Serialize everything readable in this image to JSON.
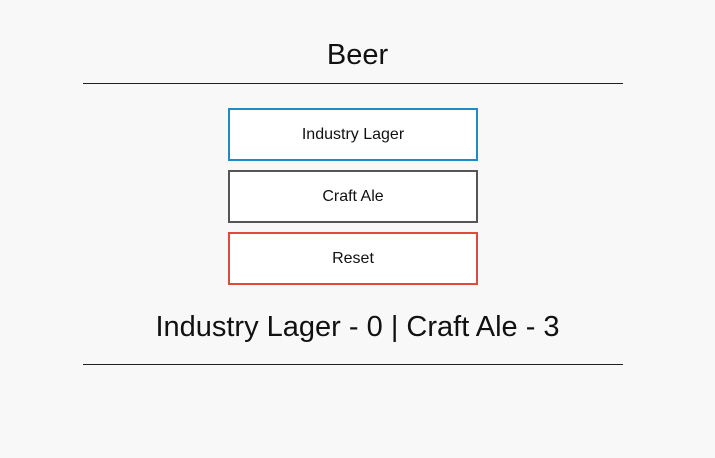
{
  "app": {
    "title": "Beer"
  },
  "buttons": {
    "lager_label": "Industry Lager",
    "ale_label": "Craft Ale",
    "reset_label": "Reset"
  },
  "colors": {
    "lager_border": "#1a8cc8",
    "ale_border": "#555555",
    "reset_border": "#e04a3a"
  },
  "tally": {
    "lager_label": "Industry Lager",
    "lager_count": "0",
    "separator": "|",
    "ale_label": "Craft Ale",
    "ale_count": "3"
  }
}
